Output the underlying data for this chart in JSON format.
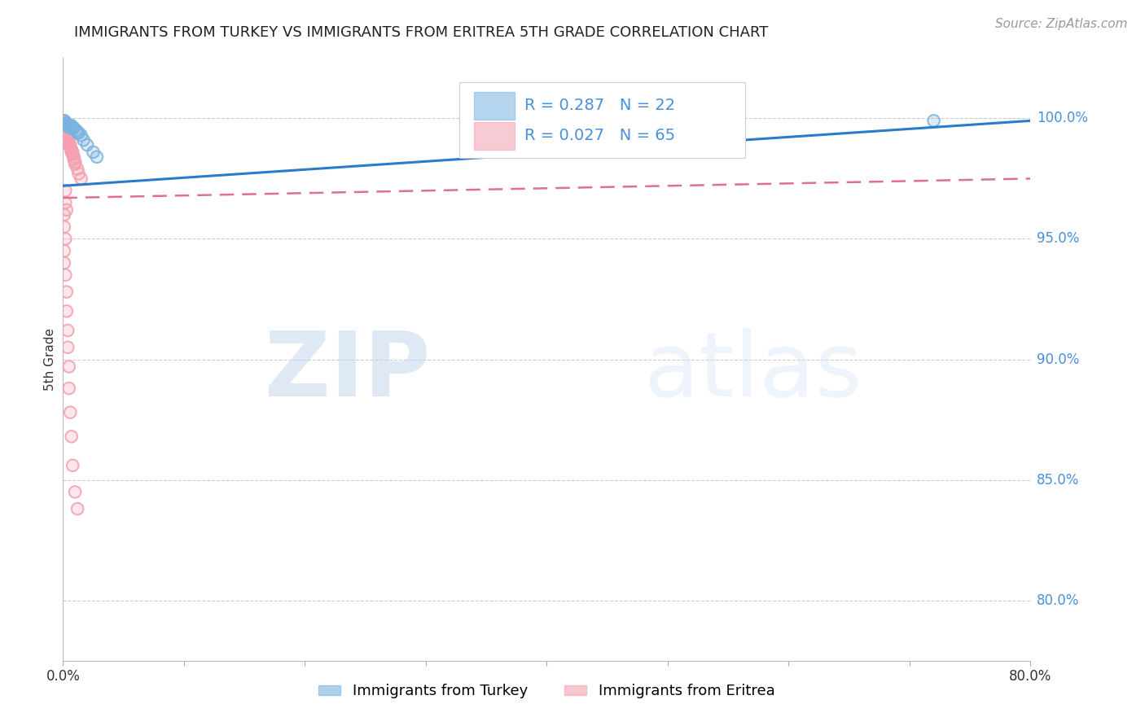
{
  "title": "IMMIGRANTS FROM TURKEY VS IMMIGRANTS FROM ERITREA 5TH GRADE CORRELATION CHART",
  "source": "Source: ZipAtlas.com",
  "ylabel": "5th Grade",
  "x_min": 0.0,
  "x_max": 0.8,
  "y_min": 0.775,
  "y_max": 1.025,
  "y_ticks": [
    0.8,
    0.85,
    0.9,
    0.95,
    1.0
  ],
  "y_tick_labels": [
    "80.0%",
    "85.0%",
    "90.0%",
    "95.0%",
    "100.0%"
  ],
  "x_ticks": [
    0.0,
    0.1,
    0.2,
    0.3,
    0.4,
    0.5,
    0.6,
    0.7,
    0.8
  ],
  "x_tick_labels": [
    "0.0%",
    "",
    "",
    "",
    "",
    "",
    "",
    "",
    "80.0%"
  ],
  "turkey_color": "#7ab3e0",
  "eritrea_color": "#f4a0b0",
  "turkey_R": 0.287,
  "turkey_N": 22,
  "eritrea_R": 0.027,
  "eritrea_N": 65,
  "legend_label_turkey": "Immigrants from Turkey",
  "legend_label_eritrea": "Immigrants from Eritrea",
  "turkey_x": [
    0.001,
    0.002,
    0.003,
    0.004,
    0.005,
    0.006,
    0.007,
    0.009,
    0.011,
    0.013,
    0.015,
    0.017,
    0.02,
    0.025,
    0.028,
    0.003,
    0.004,
    0.005,
    0.006,
    0.008,
    0.012,
    0.72
  ],
  "turkey_y": [
    0.999,
    0.998,
    0.997,
    0.997,
    0.997,
    0.997,
    0.997,
    0.996,
    0.995,
    0.994,
    0.993,
    0.991,
    0.989,
    0.986,
    0.984,
    0.998,
    0.997,
    0.997,
    0.996,
    0.996,
    0.994,
    0.999
  ],
  "eritrea_x": [
    0.001,
    0.001,
    0.001,
    0.001,
    0.001,
    0.001,
    0.001,
    0.001,
    0.002,
    0.002,
    0.002,
    0.002,
    0.002,
    0.002,
    0.002,
    0.003,
    0.003,
    0.003,
    0.003,
    0.003,
    0.003,
    0.004,
    0.004,
    0.004,
    0.004,
    0.004,
    0.005,
    0.005,
    0.005,
    0.005,
    0.006,
    0.006,
    0.006,
    0.007,
    0.007,
    0.007,
    0.008,
    0.008,
    0.009,
    0.009,
    0.01,
    0.01,
    0.012,
    0.013,
    0.015,
    0.002,
    0.002,
    0.003,
    0.001,
    0.001,
    0.002,
    0.001,
    0.001,
    0.002,
    0.003,
    0.003,
    0.004,
    0.004,
    0.005,
    0.005,
    0.006,
    0.007,
    0.008,
    0.01,
    0.012
  ],
  "eritrea_y": [
    0.999,
    0.999,
    0.998,
    0.998,
    0.998,
    0.997,
    0.997,
    0.997,
    0.997,
    0.997,
    0.996,
    0.996,
    0.996,
    0.995,
    0.995,
    0.995,
    0.995,
    0.994,
    0.994,
    0.993,
    0.993,
    0.993,
    0.992,
    0.992,
    0.991,
    0.991,
    0.991,
    0.99,
    0.99,
    0.989,
    0.989,
    0.988,
    0.988,
    0.987,
    0.987,
    0.986,
    0.986,
    0.985,
    0.984,
    0.983,
    0.982,
    0.981,
    0.979,
    0.977,
    0.975,
    0.97,
    0.965,
    0.962,
    0.96,
    0.955,
    0.95,
    0.945,
    0.94,
    0.935,
    0.928,
    0.92,
    0.912,
    0.905,
    0.897,
    0.888,
    0.878,
    0.868,
    0.856,
    0.845,
    0.838
  ],
  "watermark_zip": "ZIP",
  "watermark_atlas": "atlas",
  "background_color": "#ffffff",
  "grid_color": "#cccccc",
  "turkey_line_color": "#2b7bcc",
  "eritrea_line_color": "#e07090"
}
